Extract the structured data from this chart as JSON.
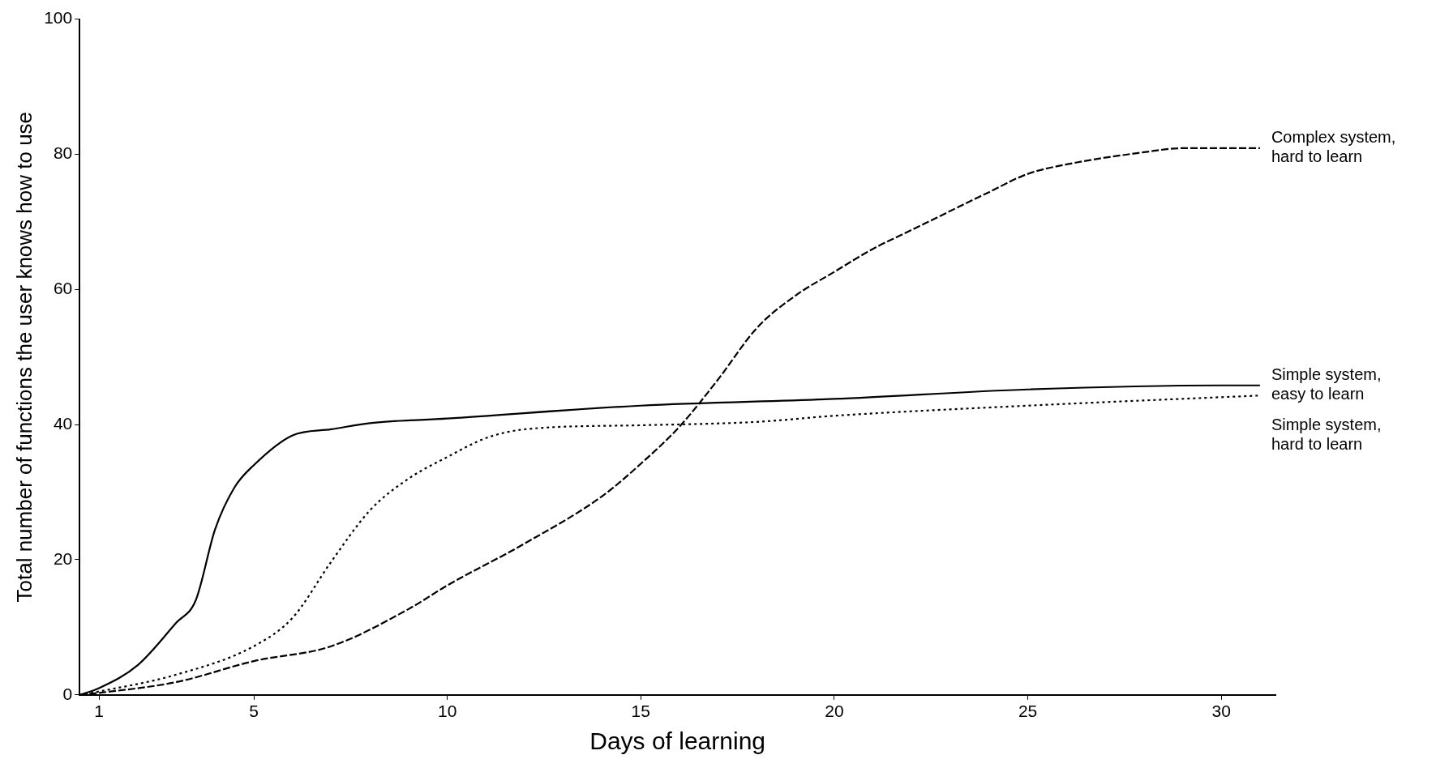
{
  "chart_data": {
    "type": "line",
    "xlabel": "Days of learning",
    "ylabel": "Total number of functions the user knows how to use",
    "xlim": [
      0.5,
      31.4
    ],
    "xticks": [
      1,
      5,
      10,
      15,
      20,
      25,
      30
    ],
    "ylim": [
      0,
      100
    ],
    "yticks": [
      0,
      20,
      40,
      60,
      80,
      100
    ],
    "grid": false,
    "legend": false,
    "marker": "none",
    "series": [
      {
        "name": "Complex system, hard to learn",
        "color": "#000000",
        "line_style": "dashed",
        "x": [
          0.5,
          1,
          3,
          5,
          7,
          9,
          10,
          12,
          14,
          15,
          16,
          17,
          18,
          19,
          20,
          21,
          22,
          24,
          25,
          26,
          28,
          29,
          31
        ],
        "values": [
          0,
          0.3,
          1.9,
          5,
          7.2,
          12.7,
          16.2,
          22.4,
          29.4,
          34.2,
          39.7,
          46.7,
          54.3,
          59.1,
          62.6,
          66,
          68.8,
          74.4,
          77.1,
          78.5,
          80.3,
          80.9,
          80.9
        ]
      },
      {
        "name": "Simple system, easy to learn",
        "color": "#000000",
        "line_style": "solid",
        "x": [
          0.5,
          1,
          2,
          3,
          3.5,
          4,
          4.5,
          5,
          6,
          7,
          8,
          10,
          15,
          20,
          25,
          30,
          31
        ],
        "values": [
          0,
          1,
          4.4,
          10.7,
          14,
          24.5,
          30.7,
          34,
          38.4,
          39.3,
          40.2,
          40.9,
          42.8,
          43.8,
          45.2,
          45.8,
          45.8
        ]
      },
      {
        "name": "Simple system, hard to learn",
        "color": "#000000",
        "line_style": "dotted",
        "x": [
          0.5,
          1,
          3,
          5,
          6,
          7,
          8,
          9,
          10,
          11,
          12,
          15,
          18,
          20,
          25,
          31
        ],
        "values": [
          0,
          0.5,
          3,
          7.2,
          11.4,
          19.7,
          27.3,
          32,
          35.2,
          38,
          39.3,
          39.9,
          40.4,
          41.3,
          42.8,
          44.3
        ]
      }
    ]
  }
}
